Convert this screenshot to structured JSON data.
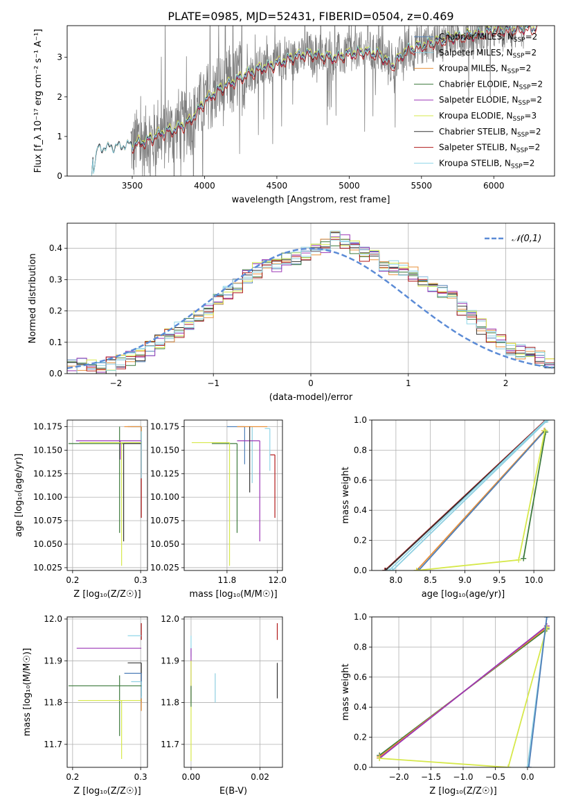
{
  "figure_title": "PLATE=0985, MJD=52431, FIBERID=0504, z=0.469",
  "colors": {
    "chabrier_miles": "#4f7fb8",
    "salpeter_miles": "#8ecfe0",
    "kroupa_miles": "#e8903a",
    "chabrier_elodie": "#3d7a3d",
    "salpeter_elodie": "#9b35b5",
    "kroupa_elodie": "#d6e84a",
    "chabrier_stelib": "#333333",
    "salpeter_stelib": "#b01818",
    "kroupa_stelib": "#8fd6e8",
    "data": "#808080",
    "gaussian": "#5b8bd6",
    "grid": "#b0b0b0"
  },
  "chart_data": [
    {
      "id": "spectrum",
      "type": "line",
      "xlabel": "wavelength [Angstrom, rest frame]",
      "ylabel": "Flux [f_λ 10⁻¹⁷ erg cm⁻² s⁻¹ A⁻¹]",
      "xlim": [
        3050,
        6420
      ],
      "ylim": [
        0,
        3.8
      ],
      "xticks": [
        3500,
        4000,
        4500,
        5000,
        5500,
        6000
      ],
      "yticks": [
        0,
        1,
        2,
        3
      ],
      "grid": false,
      "legend_position": "right",
      "legend": [
        {
          "label": "Chabrier MILES, N",
          "sub": "SSP",
          "tail": "=2",
          "color_key": "chabrier_miles"
        },
        {
          "label": "Salpeter MILES, N",
          "sub": "SSP",
          "tail": "=2",
          "color_key": "salpeter_miles"
        },
        {
          "label": "Kroupa MILES, N",
          "sub": "SSP",
          "tail": "=2",
          "color_key": "kroupa_miles"
        },
        {
          "label": "Chabrier ELODIE, N",
          "sub": "SSP",
          "tail": "=2",
          "color_key": "chabrier_elodie"
        },
        {
          "label": "Salpeter ELODIE, N",
          "sub": "SSP",
          "tail": "=2",
          "color_key": "salpeter_elodie"
        },
        {
          "label": "Kroupa ELODIE, N",
          "sub": "SSP",
          "tail": "=3",
          "color_key": "kroupa_elodie"
        },
        {
          "label": "Chabrier STELIB, N",
          "sub": "SSP",
          "tail": "=2",
          "color_key": "chabrier_stelib"
        },
        {
          "label": "Salpeter STELIB, N",
          "sub": "SSP",
          "tail": "=2",
          "color_key": "salpeter_stelib"
        },
        {
          "label": "Kroupa STELIB, N",
          "sub": "SSP",
          "tail": "=2",
          "color_key": "kroupa_stelib"
        }
      ],
      "model_anchor_points": {
        "wavelength": [
          3220,
          3260,
          3300,
          3400,
          3500,
          3600,
          3700,
          3800,
          3900,
          4000,
          4100,
          4200,
          4300,
          4400,
          4500,
          4600,
          4700,
          4800,
          4900,
          5000,
          5100,
          5200,
          5300,
          5400,
          5500,
          5600,
          5700,
          5800,
          5900,
          6000,
          6100,
          6200
        ],
        "flux": [
          0,
          0.68,
          0.72,
          0.75,
          0.8,
          0.9,
          1.1,
          1.2,
          1.4,
          1.9,
          2.2,
          2.4,
          2.6,
          2.75,
          2.85,
          3.0,
          3.1,
          3.05,
          3.0,
          3.1,
          3.15,
          3.1,
          2.8,
          3.2,
          3.3,
          3.4,
          3.5,
          3.55,
          3.6,
          3.7,
          3.7,
          3.75
        ]
      },
      "data_wavelength_range": [
        3490,
        6220
      ]
    },
    {
      "id": "residuals",
      "type": "histogram",
      "xlabel": "(data-model)/error",
      "ylabel": "Normed distribution",
      "xlim": [
        -2.5,
        2.5
      ],
      "ylim": [
        0,
        0.48
      ],
      "xticks": [
        -2,
        -1,
        0,
        1,
        2
      ],
      "yticks": [
        0.0,
        0.1,
        0.2,
        0.3,
        0.4
      ],
      "grid": true,
      "legend_position": "top-right",
      "legend_label": "𝒩(0,1)",
      "bin_width": 0.1,
      "bin_centers": [
        -2.45,
        -2.35,
        -2.25,
        -2.15,
        -2.05,
        -1.95,
        -1.85,
        -1.75,
        -1.65,
        -1.55,
        -1.45,
        -1.35,
        -1.25,
        -1.15,
        -1.05,
        -0.95,
        -0.85,
        -0.75,
        -0.65,
        -0.55,
        -0.45,
        -0.35,
        -0.25,
        -0.15,
        -0.05,
        0.05,
        0.15,
        0.25,
        0.35,
        0.45,
        0.55,
        0.65,
        0.75,
        0.85,
        0.95,
        1.05,
        1.15,
        1.25,
        1.35,
        1.45,
        1.55,
        1.65,
        1.75,
        1.85,
        1.95,
        2.05,
        2.15,
        2.25,
        2.35,
        2.45
      ],
      "histogram_values": [
        0.02,
        0.03,
        0.02,
        0.02,
        0.03,
        0.04,
        0.05,
        0.06,
        0.08,
        0.1,
        0.12,
        0.14,
        0.16,
        0.18,
        0.2,
        0.24,
        0.26,
        0.28,
        0.31,
        0.33,
        0.34,
        0.35,
        0.36,
        0.37,
        0.38,
        0.39,
        0.41,
        0.43,
        0.42,
        0.4,
        0.38,
        0.37,
        0.35,
        0.34,
        0.33,
        0.32,
        0.3,
        0.28,
        0.26,
        0.24,
        0.21,
        0.18,
        0.15,
        0.12,
        0.1,
        0.08,
        0.07,
        0.06,
        0.05,
        0.04
      ],
      "gaussian": {
        "mean": 0,
        "sigma": 1
      }
    },
    {
      "id": "age_vs_Z",
      "type": "errorbar",
      "xlabel": "Z [log₁₀(Z/Z☉)]",
      "ylabel": "age  [log₁₀(age/yr)]",
      "xlim": [
        0.192,
        0.31
      ],
      "ylim": [
        10.022,
        10.182
      ],
      "xticks": [
        0.2,
        0.3
      ],
      "yticks": [
        10.025,
        10.05,
        10.075,
        10.1,
        10.125,
        10.15,
        10.175
      ],
      "grid": true,
      "points": [
        {
          "color_key": "chabrier_miles",
          "x": 0.301,
          "y": 10.175,
          "xerr": [
            0.02,
            0.0
          ],
          "yerr": [
            0.05,
            0.0
          ]
        },
        {
          "color_key": "salpeter_miles",
          "x": 0.301,
          "y": 10.175,
          "xerr": [
            0.015,
            0.0
          ],
          "yerr": [
            0.04,
            0.0
          ]
        },
        {
          "color_key": "kroupa_miles",
          "x": 0.301,
          "y": 10.175,
          "xerr": [
            0.025,
            0.0
          ],
          "yerr": [
            0.05,
            0.0
          ]
        },
        {
          "color_key": "chabrier_elodie",
          "x": 0.269,
          "y": 10.157,
          "xerr": [
            0.075,
            0.032
          ],
          "yerr": [
            0.095,
            0.018
          ]
        },
        {
          "color_key": "salpeter_elodie",
          "x": 0.27,
          "y": 10.16,
          "xerr": [
            0.065,
            0.031
          ],
          "yerr": [
            0.02,
            0.0
          ]
        },
        {
          "color_key": "kroupa_elodie",
          "x": 0.272,
          "y": 10.158,
          "xerr": [
            0.062,
            0.029
          ],
          "yerr": [
            0.131,
            0.0
          ]
        },
        {
          "color_key": "chabrier_stelib",
          "x": 0.275,
          "y": 10.157,
          "xerr": [
            0.0,
            0.026
          ],
          "yerr": [
            0.104,
            0.0
          ]
        },
        {
          "color_key": "salpeter_stelib",
          "x": 0.301,
          "y": 10.16,
          "xerr": [
            0.0,
            0.0
          ],
          "yerr": [
            0.082,
            0.0
          ]
        },
        {
          "color_key": "kroupa_stelib",
          "x": 0.301,
          "y": 10.17,
          "xerr": [
            0.0,
            0.0
          ],
          "yerr": [
            0.05,
            0.0
          ]
        }
      ]
    },
    {
      "id": "age_vs_mass",
      "type": "errorbar",
      "xlabel": "mass [log₁₀(M/M☉)]",
      "ylabel": "",
      "xlim": [
        11.63,
        12.02
      ],
      "ylim": [
        10.022,
        10.182
      ],
      "xticks": [
        11.8,
        12.0
      ],
      "yticks": [
        10.025,
        10.05,
        10.075,
        10.1,
        10.125,
        10.15,
        10.175
      ],
      "grid": true,
      "points": [
        {
          "color_key": "chabrier_miles",
          "x": 11.87,
          "y": 10.175,
          "xerr": [
            0.07,
            0.0
          ],
          "yerr": [
            0.04,
            0.0
          ]
        },
        {
          "color_key": "salpeter_miles",
          "x": 11.9,
          "y": 10.175,
          "xerr": [
            0.0,
            0.0
          ],
          "yerr": [
            0.06,
            0.0
          ]
        },
        {
          "color_key": "kroupa_miles",
          "x": 11.96,
          "y": 10.175,
          "xerr": [
            0.12,
            0.0
          ],
          "yerr": [
            0.0,
            0.0
          ]
        },
        {
          "color_key": "chabrier_elodie",
          "x": 11.84,
          "y": 10.157,
          "xerr": [
            0.1,
            0.0
          ],
          "yerr": [
            0.095,
            0.0
          ]
        },
        {
          "color_key": "salpeter_elodie",
          "x": 11.93,
          "y": 10.16,
          "xerr": [
            0.09,
            0.0
          ],
          "yerr": [
            0.107,
            0.0
          ]
        },
        {
          "color_key": "kroupa_elodie",
          "x": 11.81,
          "y": 10.158,
          "xerr": [
            0.15,
            0.0
          ],
          "yerr": [
            0.131,
            0.0
          ]
        },
        {
          "color_key": "chabrier_stelib",
          "x": 11.89,
          "y": 10.175,
          "xerr": [
            0.0,
            0.0
          ],
          "yerr": [
            0.07,
            0.0
          ]
        },
        {
          "color_key": "salpeter_stelib",
          "x": 11.99,
          "y": 10.145,
          "xerr": [
            0.02,
            0.0
          ],
          "yerr": [
            0.067,
            0.0
          ]
        },
        {
          "color_key": "kroupa_stelib",
          "x": 11.97,
          "y": 10.173,
          "xerr": [
            0.02,
            0.0
          ],
          "yerr": [
            0.045,
            0.0
          ]
        }
      ]
    },
    {
      "id": "mass_weight_vs_age",
      "type": "line",
      "xlabel": "age  [log₁₀(age/yr)]",
      "ylabel": "mass weight",
      "xlim": [
        7.65,
        10.3
      ],
      "ylim": [
        0,
        1.0
      ],
      "xticks": [
        8.0,
        8.5,
        9.0,
        9.5,
        10.0
      ],
      "yticks": [
        0.0,
        0.2,
        0.4,
        0.6,
        0.8,
        1.0
      ],
      "grid": true,
      "series": [
        {
          "color_key": "salpeter_stelib",
          "x": [
            7.84,
            10.17
          ],
          "y": [
            0.0,
            1.0
          ]
        },
        {
          "color_key": "chabrier_stelib",
          "x": [
            7.85,
            10.18
          ],
          "y": [
            0.0,
            1.0
          ]
        },
        {
          "color_key": "kroupa_stelib",
          "x": [
            7.9,
            10.18
          ],
          "y": [
            0.0,
            1.0
          ]
        },
        {
          "color_key": "salpeter_miles",
          "x": [
            7.95,
            10.2
          ],
          "y": [
            0.0,
            1.0
          ]
        },
        {
          "color_key": "kroupa_miles",
          "x": [
            8.3,
            10.15
          ],
          "y": [
            0.0,
            0.93
          ]
        },
        {
          "color_key": "chabrier_miles",
          "x": [
            8.33,
            10.16
          ],
          "y": [
            0.0,
            0.93
          ]
        },
        {
          "color_key": "chabrier_elodie",
          "x": [
            9.85,
            10.17
          ],
          "y": [
            0.08,
            0.92
          ]
        },
        {
          "color_key": "kroupa_elodie",
          "x": [
            8.3,
            9.78,
            10.16
          ],
          "y": [
            0.0,
            0.07,
            0.93
          ]
        }
      ]
    },
    {
      "id": "mass_vs_Z",
      "type": "errorbar",
      "xlabel": "Z [log₁₀(Z/Z☉)]",
      "ylabel": "mass [log₁₀(M/M☉)]",
      "xlim": [
        0.192,
        0.31
      ],
      "ylim": [
        11.645,
        12.005
      ],
      "xticks": [
        0.2,
        0.3
      ],
      "yticks": [
        11.7,
        11.8,
        11.9,
        12.0
      ],
      "grid": true,
      "points": [
        {
          "color_key": "salpeter_stelib",
          "x": 0.301,
          "y": 11.99,
          "xerr": [
            0.0,
            0.0
          ],
          "yerr": [
            0.04,
            0.0
          ]
        },
        {
          "color_key": "kroupa_stelib",
          "x": 0.301,
          "y": 11.96,
          "xerr": [
            0.02,
            0.0
          ],
          "yerr": [
            0.0,
            0.0
          ]
        },
        {
          "color_key": "salpeter_elodie",
          "x": 0.271,
          "y": 11.93,
          "xerr": [
            0.065,
            0.03
          ],
          "yerr": [
            0.0,
            0.0
          ]
        },
        {
          "color_key": "chabrier_stelib",
          "x": 0.301,
          "y": 11.895,
          "xerr": [
            0.02,
            0.0
          ],
          "yerr": [
            0.08,
            0.0
          ]
        },
        {
          "color_key": "chabrier_miles",
          "x": 0.301,
          "y": 11.87,
          "xerr": [
            0.025,
            0.0
          ],
          "yerr": [
            0.07,
            0.0
          ]
        },
        {
          "color_key": "salpeter_miles",
          "x": 0.301,
          "y": 11.85,
          "xerr": [
            0.015,
            0.0
          ],
          "yerr": [
            0.04,
            0.0
          ]
        },
        {
          "color_key": "chabrier_elodie",
          "x": 0.269,
          "y": 11.84,
          "xerr": [
            0.075,
            0.032
          ],
          "yerr": [
            0.12,
            0.025
          ]
        },
        {
          "color_key": "kroupa_elodie",
          "x": 0.272,
          "y": 11.805,
          "xerr": [
            0.064,
            0.029
          ],
          "yerr": [
            0.14,
            0.0
          ]
        },
        {
          "color_key": "kroupa_miles",
          "x": 0.301,
          "y": 11.81,
          "xerr": [
            0.0,
            0.0
          ],
          "yerr": [
            0.03,
            0.0
          ]
        }
      ]
    },
    {
      "id": "mass_vs_EBV",
      "type": "errorbar",
      "xlabel": "E(B-V)",
      "ylabel": "",
      "xlim": [
        -0.002,
        0.0265
      ],
      "ylim": [
        11.645,
        12.005
      ],
      "xticks": [
        0.0,
        0.02
      ],
      "yticks": [
        11.7,
        11.8,
        11.9,
        12.0
      ],
      "grid": true,
      "points": [
        {
          "color_key": "salpeter_stelib",
          "x": 0.025,
          "y": 11.99,
          "xerr": [
            0.0,
            0.0
          ],
          "yerr": [
            0.04,
            0.0
          ]
        },
        {
          "color_key": "chabrier_stelib",
          "x": 0.025,
          "y": 11.895,
          "xerr": [
            0.0,
            0.0
          ],
          "yerr": [
            0.085,
            0.0
          ]
        },
        {
          "color_key": "kroupa_stelib",
          "x": 0.0,
          "y": 11.96,
          "xerr": [
            0.0,
            0.0
          ],
          "yerr": [
            0.05,
            0.0
          ]
        },
        {
          "color_key": "salpeter_elodie",
          "x": 0.0,
          "y": 11.93,
          "xerr": [
            0.0,
            0.0
          ],
          "yerr": [
            0.13,
            0.0
          ]
        },
        {
          "color_key": "kroupa_elodie",
          "x": 0.0,
          "y": 11.9,
          "xerr": [
            0.0,
            0.0
          ],
          "yerr": [
            0.24,
            0.0
          ]
        },
        {
          "color_key": "chabrier_elodie",
          "x": 0.0,
          "y": 11.84,
          "xerr": [
            0.0,
            0.0
          ],
          "yerr": [
            0.05,
            0.0
          ]
        },
        {
          "color_key": "salpeter_miles",
          "x": 0.007,
          "y": 11.87,
          "xerr": [
            0.0,
            0.0
          ],
          "yerr": [
            0.07,
            0.0
          ]
        }
      ]
    },
    {
      "id": "mass_weight_vs_Z",
      "type": "line",
      "xlabel": "Z [log₁₀(Z/Z☉)]",
      "ylabel": "mass weight",
      "xlim": [
        -2.42,
        0.42
      ],
      "ylim": [
        0,
        1.0
      ],
      "xticks": [
        -2.0,
        -1.5,
        -1.0,
        -0.5,
        0.0
      ],
      "yticks": [
        0.0,
        0.2,
        0.4,
        0.6,
        0.8,
        1.0
      ],
      "grid": true,
      "series": [
        {
          "color_key": "chabrier_elodie",
          "x": [
            -2.3,
            0.3
          ],
          "y": [
            0.08,
            0.92
          ]
        },
        {
          "color_key": "kroupa_miles",
          "x": [
            -2.3,
            0.3
          ],
          "y": [
            0.07,
            0.93
          ]
        },
        {
          "color_key": "salpeter_elodie",
          "x": [
            -2.3,
            0.3
          ],
          "y": [
            0.06,
            0.94
          ]
        },
        {
          "color_key": "kroupa_elodie",
          "x": [
            -2.3,
            -0.3,
            0.3
          ],
          "y": [
            0.06,
            0.0,
            0.93
          ]
        },
        {
          "color_key": "salpeter_miles",
          "x": [
            0.0,
            0.3
          ],
          "y": [
            0.0,
            1.0
          ]
        },
        {
          "color_key": "chabrier_miles",
          "x": [
            0.02,
            0.3
          ],
          "y": [
            0.0,
            1.0
          ]
        }
      ]
    }
  ]
}
